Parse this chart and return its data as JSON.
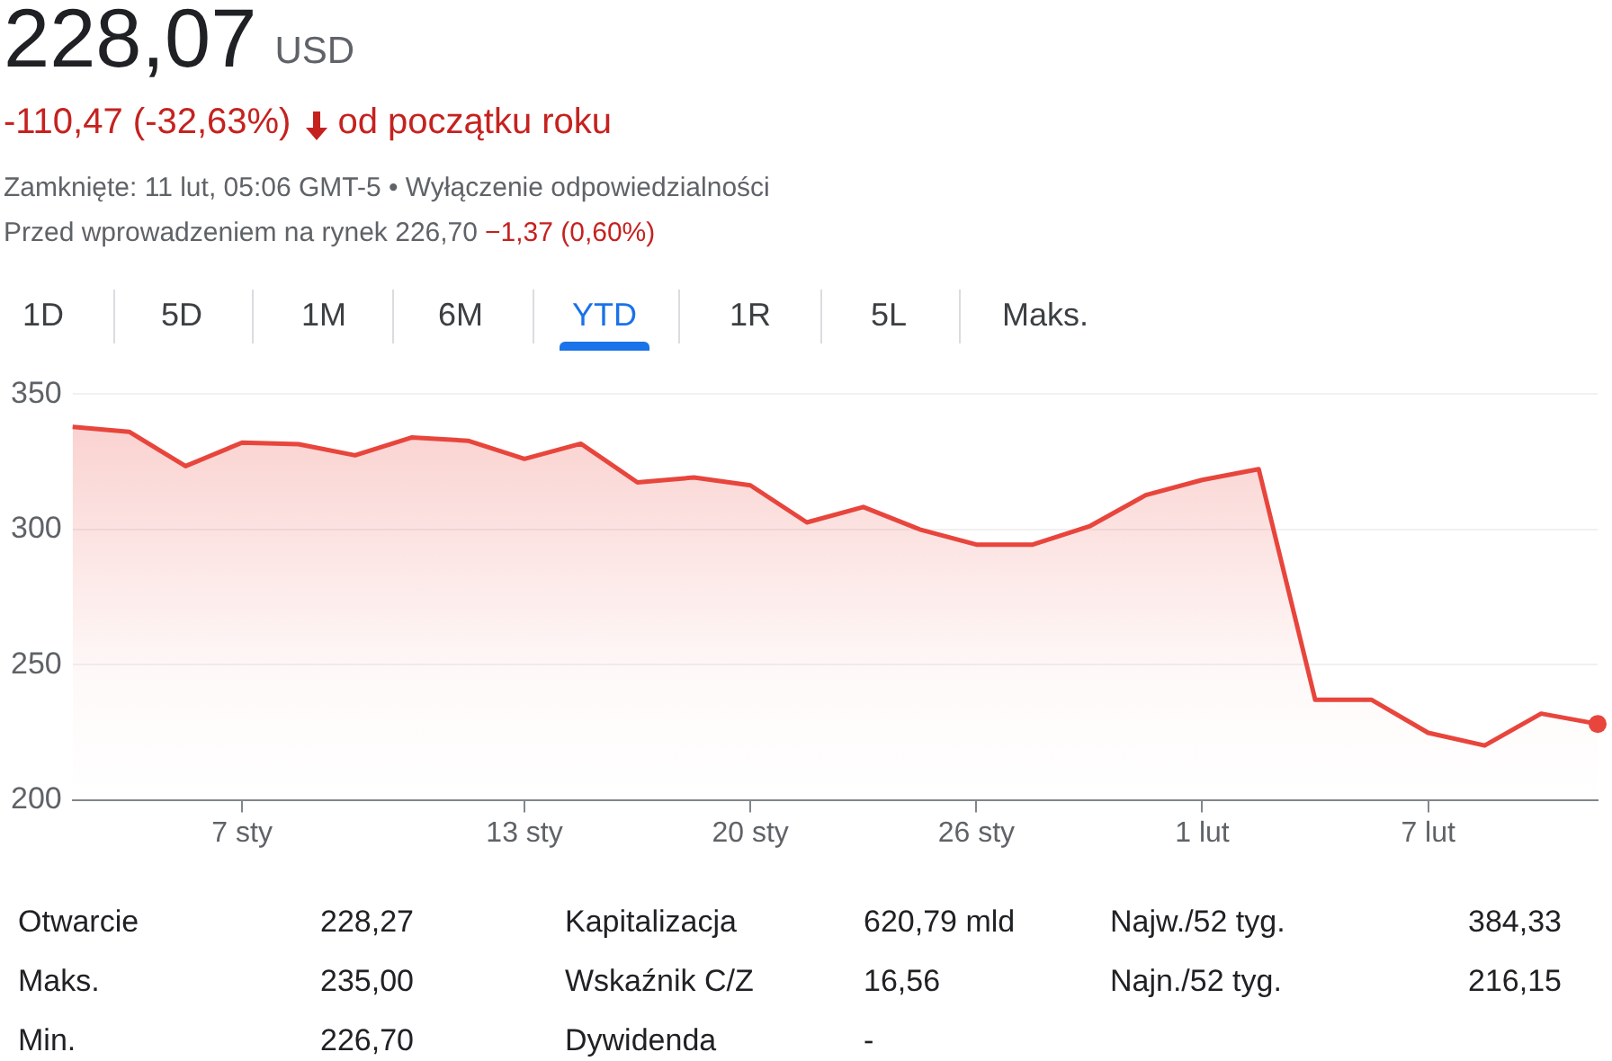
{
  "chart_data": {
    "type": "area",
    "title": "228,07",
    "categories": [
      null,
      null,
      null,
      "7 sty",
      null,
      null,
      null,
      null,
      "13 sty",
      null,
      null,
      null,
      "20 sty",
      null,
      null,
      null,
      "26 sty",
      null,
      null,
      null,
      "1 lut",
      null,
      null,
      null,
      "7 lut",
      null,
      null,
      null
    ],
    "series": [
      {
        "color": "#e8453c",
        "values": [
          337.9,
          336.1,
          323.4,
          332.1,
          331.5,
          327.4,
          334,
          332.8,
          326.1,
          331.7,
          317.4,
          319.2,
          316.3,
          302.6,
          308.3,
          300,
          294.4,
          294.4,
          301.1,
          312.7,
          318.3,
          322.3,
          237,
          237,
          224.8,
          220.1,
          231.9,
          228.07
        ]
      }
    ],
    "ylim": [
      200,
      350
    ],
    "yticks": [
      200,
      250,
      300,
      350
    ],
    "grid": "y",
    "annotations": [
      "USD",
      "-110,47 (-32,63%)",
      "od początku roku",
      "Zamknięte: 11 lut, 05:06 GMT-5 • Wyłączenie odpowiedzialności",
      "Przed wprowadzeniem na rynek 226,70",
      "−1,37 (0,60%)",
      "1D",
      "5D",
      "1M",
      "6M",
      "YTD",
      "1R",
      "5L",
      "Maks.",
      "Otwarcie",
      "228,27",
      "Kapitalizacja",
      "620,79 mld",
      "Najw./52 tyg.",
      "384,33",
      "Maks.",
      "235,00",
      "Wskaźnik C/Z",
      "16,56",
      "Najn./52 tyg.",
      "216,15",
      "Min.",
      "226,70",
      "Dywidenda",
      "-"
    ]
  }
}
